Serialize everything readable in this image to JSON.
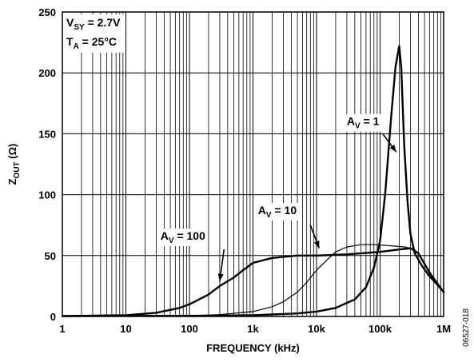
{
  "chart_data": {
    "type": "line",
    "xscale": "log",
    "xlim": [
      1,
      1000000
    ],
    "ylim": [
      0,
      250
    ],
    "grid": true,
    "xlabel": "FREQUENCY (kHz)",
    "ylabel": {
      "main": "Z",
      "sub": "OUT",
      "unit": " (Ω)"
    },
    "x_tick_values": [
      1,
      10,
      100,
      1000,
      10000,
      100000,
      1000000
    ],
    "x_tick_labels": [
      "1",
      "10",
      "100",
      "1k",
      "10k",
      "100k",
      "1M"
    ],
    "y_ticks": [
      0,
      50,
      100,
      150,
      200,
      250
    ],
    "conditions": [
      {
        "main": "V",
        "sub": "SY",
        "rest": " = 2.7V"
      },
      {
        "main": "T",
        "sub": "A",
        "rest": " = 25°C"
      }
    ],
    "series": [
      {
        "name": "AV = 1",
        "label": {
          "main": "A",
          "sub": "V",
          "rest": " = 1"
        },
        "stroke_width": 2.4,
        "points": [
          [
            1,
            0.4
          ],
          [
            100,
            0.5
          ],
          [
            1000,
            1
          ],
          [
            5000,
            2.5
          ],
          [
            10000,
            4
          ],
          [
            20000,
            7
          ],
          [
            40000,
            14
          ],
          [
            60000,
            24
          ],
          [
            80000,
            40
          ],
          [
            100000,
            62
          ],
          [
            120000,
            100
          ],
          [
            150000,
            165
          ],
          [
            175000,
            205
          ],
          [
            200000,
            222
          ],
          [
            215000,
            205
          ],
          [
            240000,
            140
          ],
          [
            270000,
            95
          ],
          [
            300000,
            68
          ],
          [
            350000,
            52
          ],
          [
            450000,
            42
          ],
          [
            600000,
            33
          ],
          [
            800000,
            26
          ],
          [
            1000000,
            20
          ]
        ]
      },
      {
        "name": "AV = 10",
        "label": {
          "main": "A",
          "sub": "V",
          "rest": " = 10"
        },
        "stroke_width": 1.2,
        "points": [
          [
            1,
            0.3
          ],
          [
            100,
            0.6
          ],
          [
            300,
            1.5
          ],
          [
            1000,
            4
          ],
          [
            2000,
            8
          ],
          [
            3000,
            12
          ],
          [
            5000,
            20
          ],
          [
            7000,
            28
          ],
          [
            10000,
            38
          ],
          [
            15000,
            47
          ],
          [
            20000,
            53
          ],
          [
            30000,
            57
          ],
          [
            50000,
            59
          ],
          [
            80000,
            59
          ],
          [
            150000,
            58
          ],
          [
            250000,
            57
          ],
          [
            350000,
            55
          ],
          [
            500000,
            44
          ],
          [
            700000,
            31
          ],
          [
            1000000,
            20
          ]
        ]
      },
      {
        "name": "AV = 100",
        "label": {
          "main": "A",
          "sub": "V",
          "rest": " = 100"
        },
        "stroke_width": 2.4,
        "points": [
          [
            1,
            0.3
          ],
          [
            10,
            1
          ],
          [
            30,
            3
          ],
          [
            70,
            7
          ],
          [
            100,
            10
          ],
          [
            200,
            18
          ],
          [
            300,
            25
          ],
          [
            500,
            32
          ],
          [
            700,
            38
          ],
          [
            1000,
            44
          ],
          [
            2000,
            48
          ],
          [
            5000,
            50
          ],
          [
            10000,
            50
          ],
          [
            30000,
            51
          ],
          [
            100000,
            53
          ],
          [
            200000,
            55
          ],
          [
            300000,
            56
          ],
          [
            400000,
            52
          ],
          [
            600000,
            36
          ],
          [
            800000,
            27
          ],
          [
            1000000,
            20
          ]
        ]
      }
    ],
    "annotations": [
      {
        "series": "AV = 1",
        "text_at": [
          30000,
          157
        ],
        "arrow_from": [
          110000,
          150
        ],
        "arrow_to": [
          180000,
          135
        ]
      },
      {
        "series": "AV = 10",
        "text_at": [
          1200,
          84
        ],
        "arrow_from": [
          8000,
          75
        ],
        "arrow_to": [
          11000,
          56
        ]
      },
      {
        "series": "AV = 100",
        "text_at": [
          35,
          63
        ],
        "arrow_from": [
          350,
          55
        ],
        "arrow_to": [
          300,
          29
        ]
      }
    ],
    "figure_code": "06527-018"
  }
}
